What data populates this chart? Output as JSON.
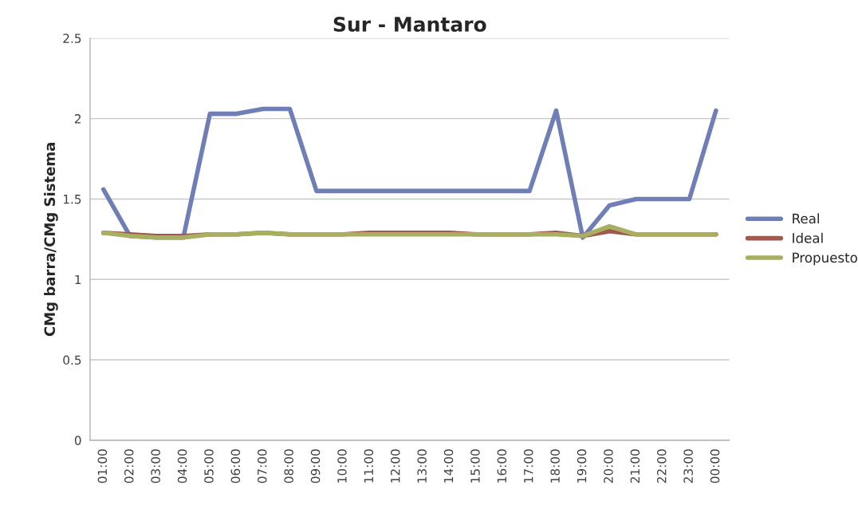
{
  "chart_data": {
    "type": "line",
    "title": "Sur - Mantaro",
    "ylabel": "CMg barra/CMg Sistema",
    "categories": [
      "01:00",
      "02:00",
      "03:00",
      "04:00",
      "05:00",
      "06:00",
      "07:00",
      "08:00",
      "09:00",
      "10:00",
      "11:00",
      "12:00",
      "13:00",
      "14:00",
      "15:00",
      "16:00",
      "17:00",
      "18:00",
      "19:00",
      "20:00",
      "21:00",
      "22:00",
      "23:00",
      "00:00"
    ],
    "series": [
      {
        "name": "Real",
        "color": "#6f7fb5",
        "values": [
          1.56,
          1.27,
          1.26,
          1.26,
          2.03,
          2.03,
          2.06,
          2.06,
          1.55,
          1.55,
          1.55,
          1.55,
          1.55,
          1.55,
          1.55,
          1.55,
          1.55,
          2.05,
          1.26,
          1.46,
          1.5,
          1.5,
          1.5,
          2.05
        ]
      },
      {
        "name": "Ideal",
        "color": "#a0594f",
        "values": [
          1.29,
          1.28,
          1.27,
          1.27,
          1.28,
          1.28,
          1.29,
          1.28,
          1.28,
          1.28,
          1.29,
          1.29,
          1.29,
          1.29,
          1.28,
          1.28,
          1.28,
          1.29,
          1.27,
          1.3,
          1.28,
          1.28,
          1.28,
          1.28
        ]
      },
      {
        "name": "Propuesto",
        "color": "#a8b060",
        "values": [
          1.29,
          1.27,
          1.26,
          1.26,
          1.28,
          1.28,
          1.29,
          1.28,
          1.28,
          1.28,
          1.28,
          1.28,
          1.28,
          1.28,
          1.28,
          1.28,
          1.28,
          1.28,
          1.27,
          1.33,
          1.28,
          1.28,
          1.28,
          1.28
        ]
      }
    ],
    "ylim": [
      0,
      2.5
    ],
    "yticks": [
      0,
      0.5,
      1,
      1.5,
      2,
      2.5
    ],
    "grid": "y",
    "legend": "right",
    "marker": "none",
    "line_style": "solid"
  }
}
